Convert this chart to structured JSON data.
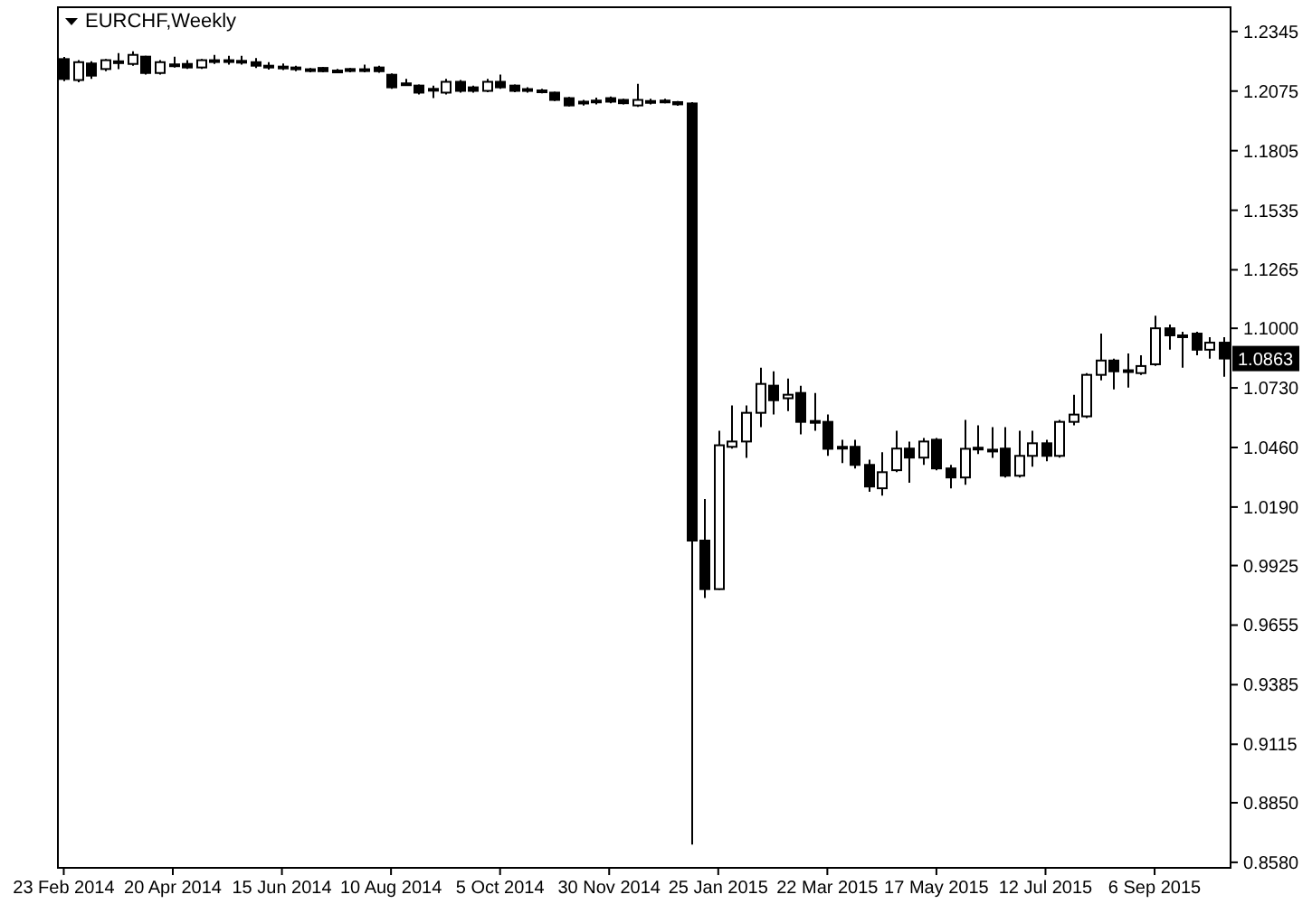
{
  "chart_data": {
    "type": "candlestick",
    "title": "EURCHF,Weekly",
    "x": [
      "2014-02-23",
      "2014-03-02",
      "2014-03-09",
      "2014-03-16",
      "2014-03-23",
      "2014-03-30",
      "2014-04-06",
      "2014-04-13",
      "2014-04-20",
      "2014-04-27",
      "2014-05-04",
      "2014-05-11",
      "2014-05-18",
      "2014-05-25",
      "2014-06-01",
      "2014-06-08",
      "2014-06-15",
      "2014-06-22",
      "2014-06-29",
      "2014-07-06",
      "2014-07-13",
      "2014-07-20",
      "2014-07-27",
      "2014-08-03",
      "2014-08-10",
      "2014-08-17",
      "2014-08-24",
      "2014-08-31",
      "2014-09-07",
      "2014-09-14",
      "2014-09-21",
      "2014-09-28",
      "2014-10-05",
      "2014-10-12",
      "2014-10-19",
      "2014-10-26",
      "2014-11-02",
      "2014-11-09",
      "2014-11-16",
      "2014-11-23",
      "2014-11-30",
      "2014-12-07",
      "2014-12-14",
      "2014-12-21",
      "2014-12-28",
      "2015-01-04",
      "2015-01-11",
      "2015-01-18",
      "2015-01-25",
      "2015-02-01",
      "2015-02-08",
      "2015-02-15",
      "2015-02-22",
      "2015-03-01",
      "2015-03-08",
      "2015-03-15",
      "2015-03-22",
      "2015-03-29",
      "2015-04-05",
      "2015-04-12",
      "2015-04-19",
      "2015-04-26",
      "2015-05-03",
      "2015-05-10",
      "2015-05-17",
      "2015-05-24",
      "2015-05-31",
      "2015-06-07",
      "2015-06-14",
      "2015-06-21",
      "2015-06-28",
      "2015-07-05",
      "2015-07-12",
      "2015-07-19",
      "2015-07-26",
      "2015-08-02",
      "2015-08-09",
      "2015-08-16",
      "2015-08-23",
      "2015-08-30",
      "2015-09-06",
      "2015-09-13",
      "2015-09-20",
      "2015-09-27",
      "2015-10-04",
      "2015-10-11"
    ],
    "ohlc": [
      [
        1.222,
        1.223,
        1.212,
        1.213
      ],
      [
        1.2125,
        1.2215,
        1.2115,
        1.2206
      ],
      [
        1.22,
        1.221,
        1.213,
        1.2145
      ],
      [
        1.2175,
        1.222,
        1.2165,
        1.2215
      ],
      [
        1.2205,
        1.2247,
        1.2174,
        1.221
      ],
      [
        1.2198,
        1.2255,
        1.219,
        1.2239
      ],
      [
        1.2231,
        1.2235,
        1.215,
        1.2157
      ],
      [
        1.2157,
        1.2215,
        1.215,
        1.2206
      ],
      [
        1.219,
        1.2231,
        1.2182,
        1.2196
      ],
      [
        1.2198,
        1.2215,
        1.2175,
        1.2182
      ],
      [
        1.2182,
        1.222,
        1.2175,
        1.2215
      ],
      [
        1.221,
        1.2239,
        1.2198,
        1.2215
      ],
      [
        1.2215,
        1.2235,
        1.2195,
        1.221
      ],
      [
        1.221,
        1.2235,
        1.2195,
        1.2212
      ],
      [
        1.2206,
        1.2225,
        1.218,
        1.219
      ],
      [
        1.219,
        1.2206,
        1.2172,
        1.2186
      ],
      [
        1.2186,
        1.22,
        1.217,
        1.2182
      ],
      [
        1.2182,
        1.219,
        1.2165,
        1.2174
      ],
      [
        1.2174,
        1.218,
        1.216,
        1.2172
      ],
      [
        1.218,
        1.2185,
        1.216,
        1.2165
      ],
      [
        1.2166,
        1.2175,
        1.216,
        1.2168
      ],
      [
        1.2175,
        1.218,
        1.216,
        1.2166
      ],
      [
        1.217,
        1.2195,
        1.216,
        1.2174
      ],
      [
        1.2182,
        1.219,
        1.2158,
        1.2165
      ],
      [
        1.2149,
        1.2155,
        1.2085,
        1.2092
      ],
      [
        1.211,
        1.213,
        1.2106,
        1.2108
      ],
      [
        1.21,
        1.2105,
        1.206,
        1.2068
      ],
      [
        1.2085,
        1.21,
        1.2043,
        1.2084
      ],
      [
        1.2068,
        1.213,
        1.206,
        1.2117
      ],
      [
        1.2117,
        1.2125,
        1.2068,
        1.2076
      ],
      [
        1.2092,
        1.21,
        1.2068,
        1.2076
      ],
      [
        1.2076,
        1.213,
        1.207,
        1.2117
      ],
      [
        1.2117,
        1.215,
        1.2085,
        1.2092
      ],
      [
        1.21,
        1.2105,
        1.207,
        1.2076
      ],
      [
        1.2084,
        1.2092,
        1.2068,
        1.2082
      ],
      [
        1.2078,
        1.2085,
        1.2065,
        1.2075
      ],
      [
        1.2068,
        1.2072,
        1.203,
        1.2035
      ],
      [
        1.2043,
        1.2048,
        1.2005,
        1.201
      ],
      [
        1.2019,
        1.2035,
        1.201,
        1.2027
      ],
      [
        1.203,
        1.2045,
        1.2015,
        1.2032
      ],
      [
        1.2043,
        1.205,
        1.202,
        1.2027
      ],
      [
        1.2035,
        1.204,
        1.2015,
        1.202
      ],
      [
        1.201,
        1.2108,
        1.2003,
        1.2035
      ],
      [
        1.203,
        1.204,
        1.2015,
        1.2028
      ],
      [
        1.2032,
        1.204,
        1.202,
        1.2025
      ],
      [
        1.2025,
        1.203,
        1.2008,
        1.2015
      ],
      [
        1.2019,
        1.2025,
        0.8661,
        1.0038
      ],
      [
        1.0038,
        1.0226,
        0.9778,
        0.9818
      ],
      [
        0.9818,
        1.0536,
        0.9815,
        1.047
      ],
      [
        1.0463,
        1.065,
        1.0455,
        1.0487
      ],
      [
        1.0487,
        1.065,
        1.0413,
        1.0617
      ],
      [
        1.0617,
        1.0821,
        1.0552,
        1.0748
      ],
      [
        1.074,
        1.0805,
        1.0609,
        1.0674
      ],
      [
        1.0683,
        1.0772,
        1.0625,
        1.0699
      ],
      [
        1.0707,
        1.074,
        1.0519,
        1.0576
      ],
      [
        1.058,
        1.0707,
        1.0536,
        1.0576
      ],
      [
        1.0576,
        1.0609,
        1.0422,
        1.0454
      ],
      [
        1.046,
        1.0495,
        1.0389,
        1.0463
      ],
      [
        1.0463,
        1.0495,
        1.0365,
        1.0381
      ],
      [
        1.0381,
        1.0405,
        1.0259,
        1.0283
      ],
      [
        1.0275,
        1.0438,
        1.0242,
        1.0348
      ],
      [
        1.0357,
        1.0536,
        1.0348,
        1.0455
      ],
      [
        1.0455,
        1.0487,
        1.03,
        1.0414
      ],
      [
        1.0414,
        1.0503,
        1.0381,
        1.0487
      ],
      [
        1.0495,
        1.0503,
        1.0357,
        1.0365
      ],
      [
        1.0365,
        1.0381,
        1.0275,
        1.0324
      ],
      [
        1.0324,
        1.0585,
        1.0291,
        1.0454
      ],
      [
        1.0455,
        1.056,
        1.043,
        1.0459
      ],
      [
        1.045,
        1.0552,
        1.0413,
        1.0446
      ],
      [
        1.0455,
        1.0552,
        1.0324,
        1.0332
      ],
      [
        1.0332,
        1.0536,
        1.0324,
        1.0422
      ],
      [
        1.0422,
        1.0536,
        1.0373,
        1.0479
      ],
      [
        1.0479,
        1.0495,
        1.0397,
        1.0422
      ],
      [
        1.0422,
        1.0585,
        1.0414,
        1.0576
      ],
      [
        1.0576,
        1.0699,
        1.056,
        1.0609
      ],
      [
        1.0601,
        1.0797,
        1.0593,
        1.0789
      ],
      [
        1.0789,
        1.0976,
        1.0764,
        1.0854
      ],
      [
        1.0854,
        1.0862,
        1.0723,
        1.0805
      ],
      [
        1.0805,
        1.0886,
        1.0731,
        1.081
      ],
      [
        1.0797,
        1.0878,
        1.0789,
        1.0829
      ],
      [
        1.0837,
        1.1057,
        1.083,
        1.1
      ],
      [
        1.1,
        1.1017,
        1.0903,
        1.0968
      ],
      [
        1.0968,
        1.0984,
        1.0821,
        1.0966
      ],
      [
        1.0976,
        1.0984,
        1.0878,
        1.0903
      ],
      [
        1.0903,
        1.096,
        1.0862,
        1.0935
      ],
      [
        1.0935,
        1.096,
        1.078,
        1.0863
      ]
    ],
    "xlim": [
      "2014-02-20",
      "2015-10-15"
    ],
    "xticks": [
      {
        "value": "2014-02-23",
        "label": "23 Feb 2014"
      },
      {
        "value": "2014-04-20",
        "label": "20 Apr 2014"
      },
      {
        "value": "2014-06-15",
        "label": "15 Jun 2014"
      },
      {
        "value": "2014-08-10",
        "label": "10 Aug 2014"
      },
      {
        "value": "2014-10-05",
        "label": "5 Oct 2014"
      },
      {
        "value": "2014-11-30",
        "label": "30 Nov 2014"
      },
      {
        "value": "2015-01-25",
        "label": "25 Jan 2015"
      },
      {
        "value": "2015-03-22",
        "label": "22 Mar 2015"
      },
      {
        "value": "2015-05-17",
        "label": "17 May 2015"
      },
      {
        "value": "2015-07-12",
        "label": "12 Jul 2015"
      },
      {
        "value": "2015-09-06",
        "label": "6 Sep 2015"
      }
    ],
    "ylim": [
      0.8555,
      1.2455
    ],
    "yticks": [
      1.2345,
      1.2075,
      1.1805,
      1.1535,
      1.1265,
      {
        "value": 1.1,
        "label": "1.1000"
      },
      {
        "value": 1.073,
        "label": "1.0730"
      },
      {
        "value": 1.046,
        "label": "1.0460"
      },
      {
        "value": 1.019,
        "label": "1.0190"
      },
      0.9925,
      0.9655,
      0.9385,
      0.9115,
      {
        "value": 0.885,
        "label": "0.8850"
      },
      {
        "value": 0.858,
        "label": "0.8580"
      }
    ],
    "annotations": [
      {
        "text": "1.0863",
        "x": "2015-10-11",
        "y": 1.0863
      }
    ]
  }
}
